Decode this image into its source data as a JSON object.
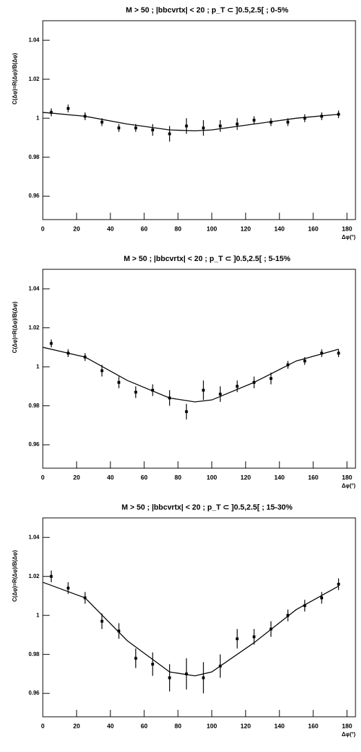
{
  "chart_data": [
    {
      "type": "scatter",
      "title": "M > 50 ; |bbcvrtx| < 20 ; p_T ⊂ ]0.5,2.5[ ; 0-5%",
      "xlabel": "Δφ(°)",
      "ylabel": "C(Δφ)=R(Δφ)/B(Δφ)",
      "color": "#000000",
      "x": [
        5,
        15,
        25,
        35,
        45,
        55,
        65,
        75,
        85,
        95,
        105,
        115,
        125,
        135,
        145,
        155,
        165,
        175
      ],
      "values": [
        1.003,
        1.005,
        1.001,
        0.998,
        0.995,
        0.995,
        0.994,
        0.992,
        0.996,
        0.995,
        0.996,
        0.997,
        0.999,
        0.998,
        0.998,
        1.0,
        1.001,
        1.002
      ],
      "errors": [
        0.002,
        0.002,
        0.002,
        0.002,
        0.002,
        0.002,
        0.003,
        0.004,
        0.004,
        0.004,
        0.003,
        0.003,
        0.002,
        0.002,
        0.002,
        0.002,
        0.002,
        0.002
      ],
      "fit": {
        "x": [
          0,
          25,
          50,
          75,
          90,
          100,
          125,
          150,
          175
        ],
        "values": [
          1.003,
          1.001,
          0.997,
          0.994,
          0.9935,
          0.994,
          0.997,
          1.0,
          1.002
        ]
      },
      "xlim": [
        0,
        185
      ],
      "ylim": [
        0.948,
        1.05
      ],
      "xticks": [
        0,
        20,
        40,
        60,
        80,
        100,
        120,
        140,
        160,
        180
      ],
      "yticks": [
        0.96,
        0.98,
        1,
        1.02,
        1.04
      ]
    },
    {
      "type": "scatter",
      "title": "M > 50 ; |bbcvrtx| < 20 ; p_T ⊂ ]0.5,2.5[ ; 5-15%",
      "xlabel": "Δφ(°)",
      "ylabel": "C(Δφ)=R(Δφ)/B(Δφ)",
      "color": "#000000",
      "x": [
        5,
        15,
        25,
        35,
        45,
        55,
        65,
        75,
        85,
        95,
        105,
        115,
        125,
        135,
        145,
        155,
        165,
        175
      ],
      "values": [
        1.012,
        1.007,
        1.005,
        0.998,
        0.992,
        0.987,
        0.988,
        0.984,
        0.977,
        0.988,
        0.986,
        0.99,
        0.992,
        0.994,
        1.001,
        1.003,
        1.007,
        1.007
      ],
      "errors": [
        0.002,
        0.002,
        0.002,
        0.003,
        0.003,
        0.003,
        0.003,
        0.004,
        0.004,
        0.005,
        0.004,
        0.003,
        0.003,
        0.003,
        0.002,
        0.002,
        0.002,
        0.002
      ],
      "fit": {
        "x": [
          0,
          25,
          50,
          75,
          90,
          100,
          125,
          150,
          175
        ],
        "values": [
          1.01,
          1.005,
          0.993,
          0.984,
          0.982,
          0.983,
          0.992,
          1.003,
          1.009
        ]
      },
      "xlim": [
        0,
        185
      ],
      "ylim": [
        0.948,
        1.05
      ],
      "xticks": [
        0,
        20,
        40,
        60,
        80,
        100,
        120,
        140,
        160,
        180
      ],
      "yticks": [
        0.96,
        0.98,
        1,
        1.02,
        1.04
      ]
    },
    {
      "type": "scatter",
      "title": "M > 50 ; |bbcvrtx| < 20 ; p_T ⊂ ]0.5,2.5[ ; 15-30%",
      "xlabel": "Δφ(°)",
      "ylabel": "C(Δφ)=R(Δφ)/B(Δφ)",
      "color": "#000000",
      "x": [
        5,
        15,
        25,
        35,
        45,
        55,
        65,
        75,
        85,
        95,
        105,
        115,
        125,
        135,
        145,
        155,
        165,
        175
      ],
      "values": [
        1.02,
        1.014,
        1.009,
        0.997,
        0.992,
        0.978,
        0.975,
        0.968,
        0.97,
        0.968,
        0.974,
        0.988,
        0.989,
        0.993,
        1.0,
        1.005,
        1.009,
        1.016
      ],
      "errors": [
        0.003,
        0.003,
        0.003,
        0.004,
        0.004,
        0.005,
        0.006,
        0.007,
        0.008,
        0.008,
        0.006,
        0.005,
        0.004,
        0.004,
        0.003,
        0.003,
        0.003,
        0.003
      ],
      "fit": {
        "x": [
          0,
          25,
          50,
          75,
          90,
          100,
          125,
          150,
          175
        ],
        "values": [
          1.017,
          1.009,
          0.987,
          0.971,
          0.969,
          0.971,
          0.986,
          1.003,
          1.015
        ]
      },
      "xlim": [
        0,
        185
      ],
      "ylim": [
        0.948,
        1.05
      ],
      "xticks": [
        0,
        20,
        40,
        60,
        80,
        100,
        120,
        140,
        160,
        180
      ],
      "yticks": [
        0.96,
        0.98,
        1,
        1.02,
        1.04
      ]
    }
  ]
}
